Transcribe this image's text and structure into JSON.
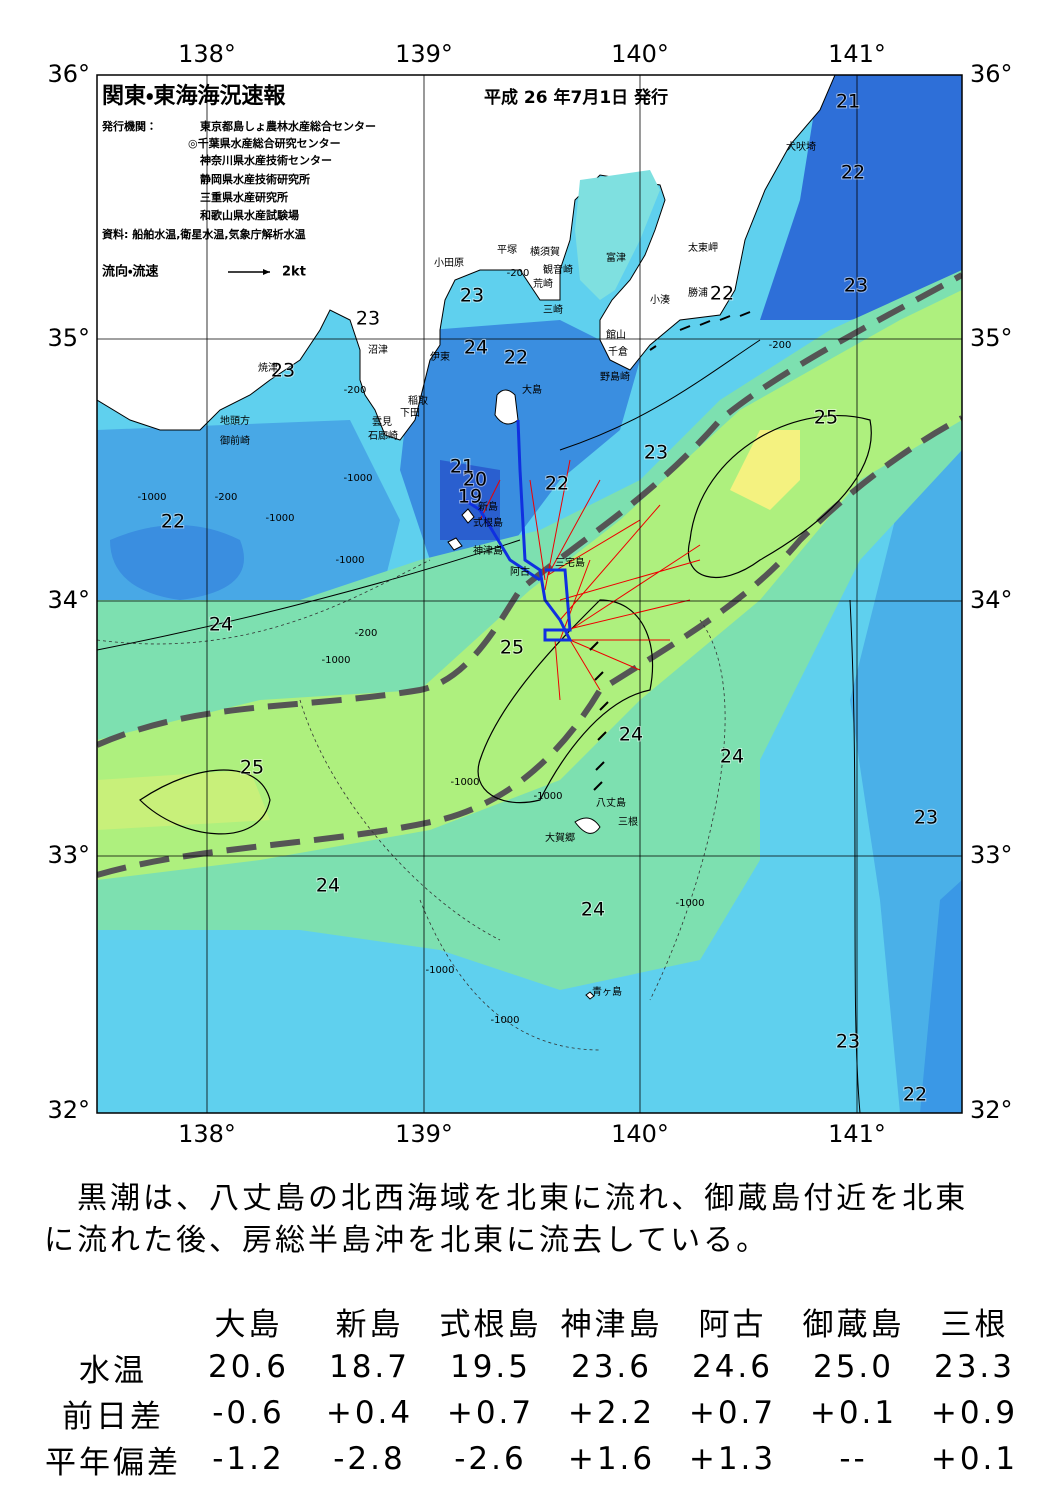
{
  "header": {
    "title": "関東・東海海況速報",
    "date": "平成 26 年7月1日 発行"
  },
  "issuers": {
    "label": "発行機関：",
    "items": [
      "東京都島しょ農林水産総合センター",
      "◎千葉県水産総合研究センター",
      "神奈川県水産技術センター",
      "静岡県水産技術研究所",
      "三重県水産研究所",
      "和歌山県水産試験場"
    ]
  },
  "sources": "資料: 船舶水温,衛星水温,気象庁解析水温",
  "legend": {
    "label": "流向・流速",
    "scale": "2kt"
  },
  "lon_labels": [
    "138°",
    "139°",
    "140°",
    "141°"
  ],
  "lat_labels": [
    "36°",
    "35°",
    "34°",
    "33°",
    "32°"
  ],
  "isotherm_labels": [
    "21",
    "22",
    "22",
    "23",
    "23",
    "23",
    "23",
    "24",
    "22",
    "25",
    "23",
    "22",
    "22",
    "24",
    "25",
    "24",
    "24",
    "25",
    "23",
    "24",
    "24",
    "23",
    "22",
    "20",
    "19",
    "21"
  ],
  "depth_labels": [
    "-200",
    "-200",
    "-200",
    "-1000",
    "-1000",
    "-1000",
    "-200",
    "-1000",
    "-1000",
    "-1000",
    "-1000",
    "-1000",
    "-1000",
    "-200",
    "-1000"
  ],
  "places": [
    "犬吠埼",
    "太東岬",
    "勝浦",
    "小湊",
    "館山",
    "千倉",
    "野島崎",
    "富津",
    "観音崎",
    "横須賀",
    "平塚",
    "荒崎",
    "三崎",
    "小田原",
    "沼津",
    "伊東",
    "焼津",
    "稲取",
    "下田",
    "雲見",
    "石廊崎",
    "地頭方",
    "御前崎",
    "大島",
    "新島",
    "式根島",
    "神津島",
    "三宅島",
    "阿古",
    "八丈島",
    "三根",
    "大賀郷",
    "青ヶ島"
  ],
  "description": [
    "　黒潮は、八丈島の北西海域を北東に流れ、御蔵島付近を北東",
    "に流れた後、房総半島沖を北東に流去している。"
  ],
  "table": {
    "columns": [
      "大島",
      "新島",
      "式根島",
      "神津島",
      "阿古",
      "御蔵島",
      "三根"
    ],
    "rows": [
      {
        "label": "水温",
        "cells": [
          "20.6",
          "18.7",
          "19.5",
          "23.6",
          "24.6",
          "25.0",
          "23.3"
        ]
      },
      {
        "label": "前日差",
        "cells": [
          "-0.6",
          "+0.4",
          "+0.7",
          "+2.2",
          "+0.7",
          "+0.1",
          "+0.9"
        ]
      },
      {
        "label": "平年偏差",
        "cells": [
          "-1.2",
          "-2.8",
          "-2.6",
          "+1.6",
          "+1.3",
          "--",
          "+0.1"
        ]
      }
    ]
  }
}
